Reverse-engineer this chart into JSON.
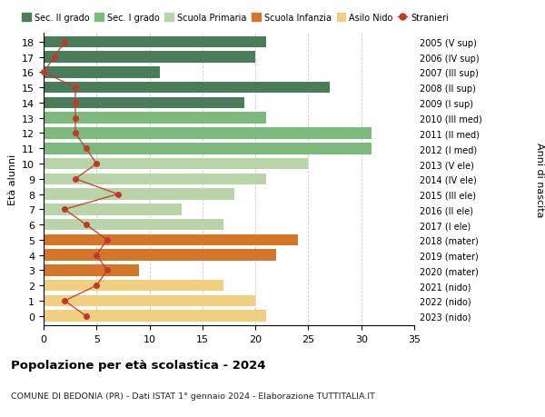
{
  "ages": [
    18,
    17,
    16,
    15,
    14,
    13,
    12,
    11,
    10,
    9,
    8,
    7,
    6,
    5,
    4,
    3,
    2,
    1,
    0
  ],
  "right_labels": [
    "2005 (V sup)",
    "2006 (IV sup)",
    "2007 (III sup)",
    "2008 (II sup)",
    "2009 (I sup)",
    "2010 (III med)",
    "2011 (II med)",
    "2012 (I med)",
    "2013 (V ele)",
    "2014 (IV ele)",
    "2015 (III ele)",
    "2016 (II ele)",
    "2017 (I ele)",
    "2018 (mater)",
    "2019 (mater)",
    "2020 (mater)",
    "2021 (nido)",
    "2022 (nido)",
    "2023 (nido)"
  ],
  "bar_values": [
    21,
    20,
    11,
    27,
    19,
    21,
    31,
    31,
    25,
    21,
    18,
    13,
    17,
    24,
    22,
    9,
    17,
    20,
    21
  ],
  "bar_colors": [
    "#4a7c59",
    "#4a7c59",
    "#4a7c59",
    "#4a7c59",
    "#4a7c59",
    "#7db87d",
    "#7db87d",
    "#7db87d",
    "#b8d4a8",
    "#b8d4a8",
    "#b8d4a8",
    "#b8d4a8",
    "#b8d4a8",
    "#d4762a",
    "#d4762a",
    "#d4762a",
    "#f0d080",
    "#f0d080",
    "#f0d080"
  ],
  "stranieri_values": [
    2,
    1,
    0,
    3,
    3,
    3,
    3,
    4,
    5,
    3,
    7,
    2,
    4,
    6,
    5,
    6,
    5,
    2,
    4
  ],
  "legend_labels": [
    "Sec. II grado",
    "Sec. I grado",
    "Scuola Primaria",
    "Scuola Infanzia",
    "Asilo Nido",
    "Stranieri"
  ],
  "legend_colors": [
    "#4a7c59",
    "#7db87d",
    "#b8d4a8",
    "#d4762a",
    "#f0d080",
    "#c0392b"
  ],
  "ylabel": "Età alunni",
  "right_ylabel": "Anni di nascita",
  "title": "Popolazione per età scolastica - 2024",
  "subtitle": "COMUNE DI BEDONIA (PR) - Dati ISTAT 1° gennaio 2024 - Elaborazione TUTTITALIA.IT",
  "xlim": [
    0,
    35
  ],
  "xticks": [
    0,
    5,
    10,
    15,
    20,
    25,
    30,
    35
  ],
  "bg_color": "#ffffff",
  "grid_color": "#cccccc"
}
